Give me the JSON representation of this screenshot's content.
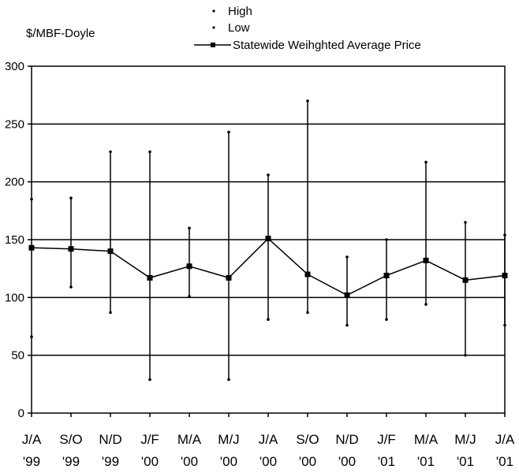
{
  "chart_data": {
    "type": "line",
    "ylabel": "$/MBF-Doyle",
    "ylim": [
      0,
      300
    ],
    "y_ticks": [
      0,
      50,
      100,
      150,
      200,
      250,
      300
    ],
    "grid": "horizontal",
    "legend_position": "top-center",
    "categories": [
      {
        "top": "J/A",
        "bottom": "'99"
      },
      {
        "top": "S/O",
        "bottom": "'99"
      },
      {
        "top": "N/D",
        "bottom": "'99"
      },
      {
        "top": "J/F",
        "bottom": "'00"
      },
      {
        "top": "M/A",
        "bottom": "'00"
      },
      {
        "top": "M/J",
        "bottom": "'00"
      },
      {
        "top": "J/A",
        "bottom": "'00"
      },
      {
        "top": "S/O",
        "bottom": "'00"
      },
      {
        "top": "N/D",
        "bottom": "'00"
      },
      {
        "top": "J/F",
        "bottom": "'01"
      },
      {
        "top": "M/A",
        "bottom": "'01"
      },
      {
        "top": "M/J",
        "bottom": "'01"
      },
      {
        "top": "J/A",
        "bottom": "'01"
      }
    ],
    "series": [
      {
        "name": "High",
        "marker": "dot",
        "values": [
          185,
          186,
          226,
          226,
          160,
          243,
          206,
          270,
          135,
          150,
          217,
          165,
          154
        ]
      },
      {
        "name": "Low",
        "marker": "dot",
        "values": [
          66,
          109,
          87,
          29,
          101,
          29,
          81,
          87,
          76,
          81,
          94,
          50,
          76
        ]
      },
      {
        "name": "Statewide Weihghted Average Price",
        "marker": "square",
        "values": [
          143,
          142,
          140,
          117,
          127,
          117,
          151,
          120,
          102,
          119,
          132,
          115,
          119
        ]
      }
    ],
    "colors": {
      "line": "#000000",
      "grid": "#000000"
    }
  }
}
